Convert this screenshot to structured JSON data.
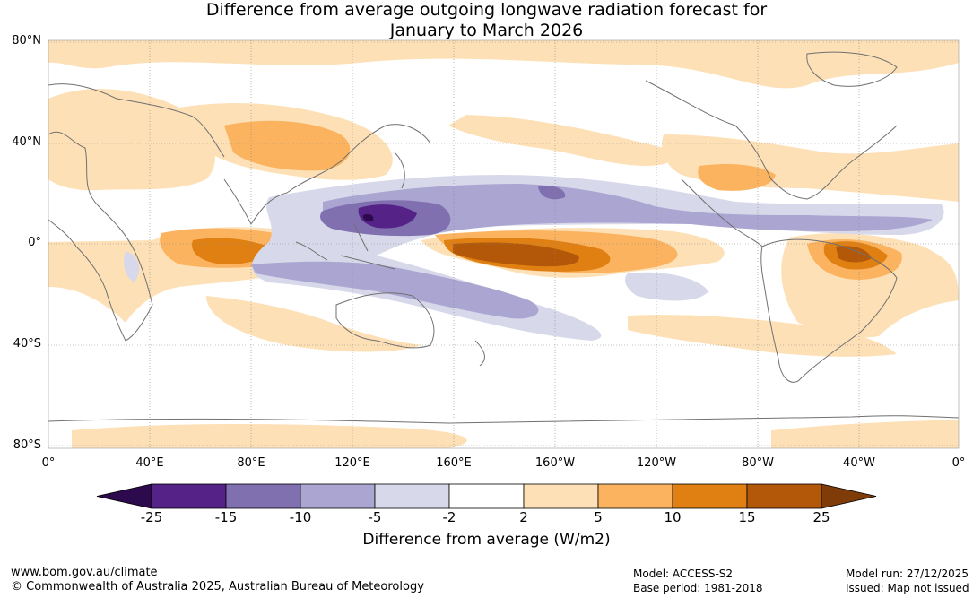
{
  "title": {
    "line1": "Difference from average outgoing longwave radiation forecast for",
    "line2": "January to March 2026"
  },
  "map": {
    "lat_labels": [
      "80°N",
      "40°N",
      "0°",
      "40°S",
      "80°S"
    ],
    "lon_labels": [
      "0°",
      "40°E",
      "80°E",
      "120°E",
      "160°E",
      "160°W",
      "120°W",
      "80°W",
      "40°W",
      "0°"
    ]
  },
  "colorbar": {
    "title": "Difference from average (W/m2)",
    "ticks": [
      "-25",
      "-15",
      "-10",
      "-5",
      "-2",
      "2",
      "5",
      "10",
      "15",
      "25"
    ],
    "colors": {
      "lt_-25": "#2d0a4e",
      "-25_-15": "#552288",
      "-15_-10": "#8070b0",
      "-10_-5": "#aba5d1",
      "-5_-2": "#d8d8eb",
      "-2_2": "#ffffff",
      "2_5": "#fde0b6",
      "5_10": "#fbb35f",
      "10_15": "#e07f12",
      "15_25": "#b35808",
      "gt_25": "#7f3b08"
    }
  },
  "footer": {
    "website": "www.bom.gov.au/climate",
    "copyright": "© Commonwealth of Australia 2025, Australian Bureau of Meteorology",
    "model": "Model: ACCESS-S2",
    "base_period": "Base period: 1981-2018",
    "model_run": "Model run: 27/12/2025",
    "issued": "Issued: Map not issued"
  }
}
